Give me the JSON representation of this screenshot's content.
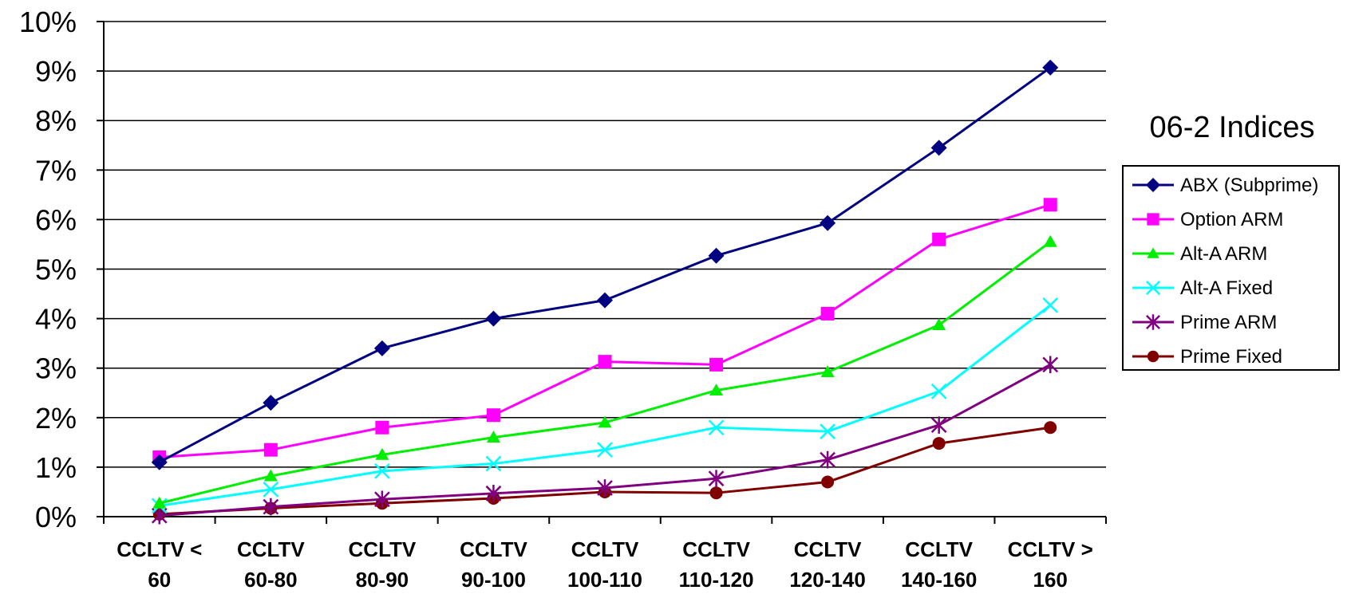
{
  "chart_data": {
    "type": "line",
    "categories": [
      [
        "CCLTV <",
        "60"
      ],
      [
        "CCLTV",
        "60-80"
      ],
      [
        "CCLTV",
        "80-90"
      ],
      [
        "CCLTV",
        "90-100"
      ],
      [
        "CCLTV",
        "100-110"
      ],
      [
        "CCLTV",
        "110-120"
      ],
      [
        "CCLTV",
        "120-140"
      ],
      [
        "CCLTV",
        "140-160"
      ],
      [
        "CCLTV >",
        "160"
      ]
    ],
    "ylim": [
      0,
      10
    ],
    "yticks": [
      "0%",
      "1%",
      "2%",
      "3%",
      "4%",
      "5%",
      "6%",
      "7%",
      "8%",
      "9%",
      "10%"
    ],
    "grid": true,
    "legend_title": "06-2 Indices",
    "legend_position": "right",
    "series": [
      {
        "name": "ABX (Subprime)",
        "color": "#000080",
        "marker": "diamond",
        "values": [
          1.1,
          2.3,
          3.4,
          4.0,
          4.37,
          5.27,
          5.93,
          7.45,
          9.07
        ]
      },
      {
        "name": "Option ARM",
        "color": "#FF00FF",
        "marker": "square",
        "values": [
          1.2,
          1.35,
          1.8,
          2.05,
          3.13,
          3.07,
          4.1,
          5.6,
          6.3
        ]
      },
      {
        "name": "Alt-A ARM",
        "color": "#00EE00",
        "marker": "triangle",
        "values": [
          0.27,
          0.82,
          1.25,
          1.6,
          1.9,
          2.55,
          2.92,
          3.87,
          5.55
        ]
      },
      {
        "name": "Alt-A Fixed",
        "color": "#00FFFF",
        "marker": "x",
        "values": [
          0.22,
          0.55,
          0.92,
          1.07,
          1.35,
          1.8,
          1.72,
          2.53,
          4.27
        ]
      },
      {
        "name": "Prime ARM",
        "color": "#800080",
        "marker": "star",
        "values": [
          0.02,
          0.2,
          0.35,
          0.47,
          0.58,
          0.77,
          1.15,
          1.85,
          3.07
        ]
      },
      {
        "name": "Prime Fixed",
        "color": "#800000",
        "marker": "circle",
        "values": [
          0.05,
          0.17,
          0.27,
          0.37,
          0.5,
          0.48,
          0.7,
          1.48,
          1.8
        ]
      }
    ]
  }
}
